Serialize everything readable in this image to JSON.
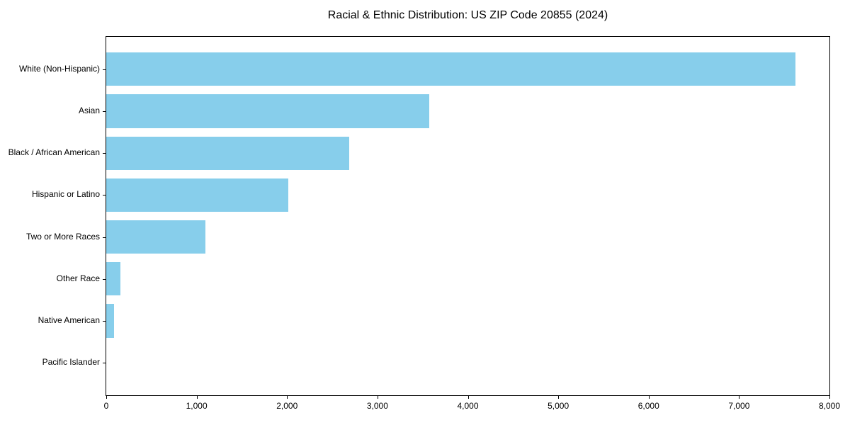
{
  "title": "Racial & Ethnic Distribution: US ZIP Code 20855 (2024)",
  "chart_data": {
    "type": "bar",
    "orientation": "horizontal",
    "title": "Racial & Ethnic Distribution: US ZIP Code 20855 (2024)",
    "xlabel": "",
    "ylabel": "",
    "categories": [
      "White (Non-Hispanic)",
      "Asian",
      "Black / African American",
      "Hispanic or Latino",
      "Two or More Races",
      "Other Race",
      "Native American",
      "Pacific Islander"
    ],
    "values": [
      7625,
      3575,
      2690,
      2015,
      1100,
      160,
      85,
      0
    ],
    "xlim": [
      0,
      8000
    ],
    "xticks": [
      0,
      1000,
      2000,
      3000,
      4000,
      5000,
      6000,
      7000,
      8000
    ],
    "xtick_labels": [
      "0",
      "1,000",
      "2,000",
      "3,000",
      "4,000",
      "5,000",
      "6,000",
      "7,000",
      "8,000"
    ],
    "bar_color": "#87CEEB",
    "frame_color": "#000000",
    "grid": false,
    "legend": null
  }
}
